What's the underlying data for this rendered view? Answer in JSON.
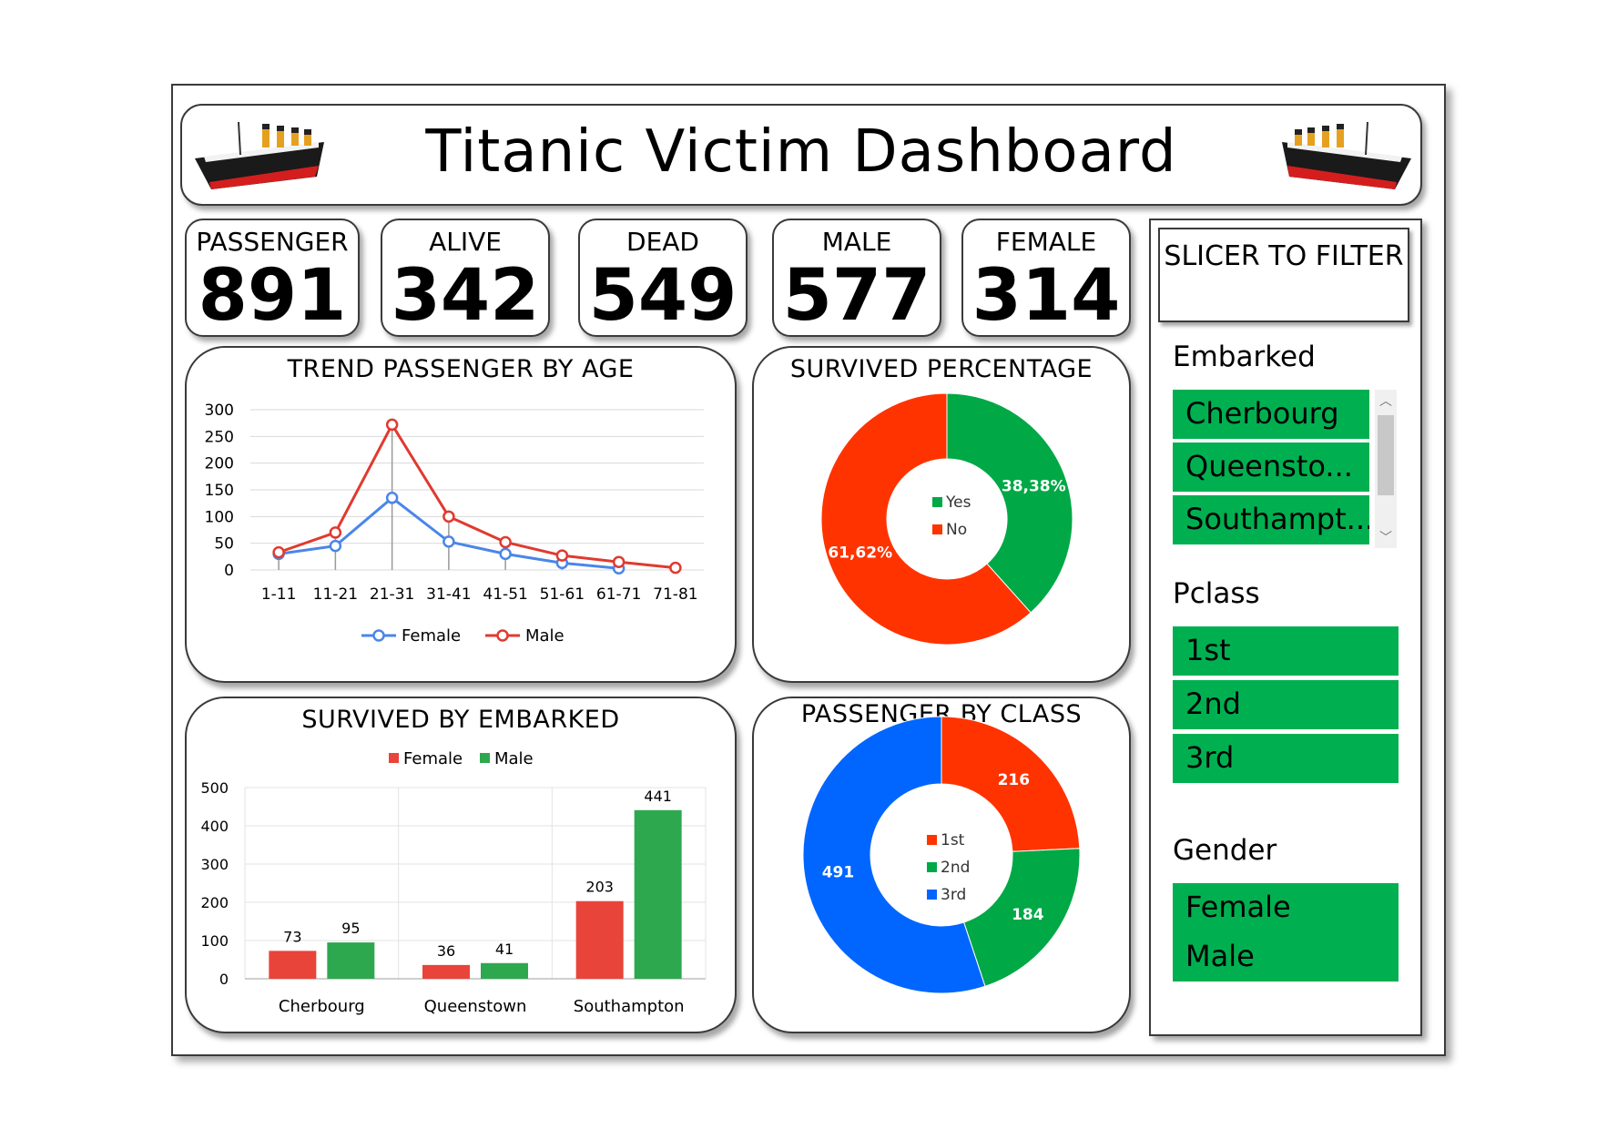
{
  "title": "Titanic Victim Dashboard",
  "kpis": [
    {
      "label": "PASSENGER",
      "value": "891"
    },
    {
      "label": "ALIVE",
      "value": "342"
    },
    {
      "label": "DEAD",
      "value": "549"
    },
    {
      "label": "MALE",
      "value": "577"
    },
    {
      "label": "FEMALE",
      "value": "314"
    }
  ],
  "slicer": {
    "header": "SLICER TO FILTER",
    "groups": [
      {
        "title": "Embarked",
        "items": [
          "Cherbourg",
          "Queensto...",
          "Southampt..."
        ]
      },
      {
        "title": "Pclass",
        "items": [
          "1st",
          "2nd",
          "3rd"
        ]
      },
      {
        "title": "Gender",
        "items": [
          "Female",
          "Male"
        ]
      }
    ],
    "item_color": "#00b050"
  },
  "chart_data": [
    {
      "type": "line",
      "title": "TREND PASSENGER BY AGE",
      "categories": [
        "1-11",
        "11-21",
        "21-31",
        "31-41",
        "41-51",
        "51-61",
        "61-71",
        "71-81"
      ],
      "series": [
        {
          "name": "Female",
          "color": "#4a86e8",
          "values": [
            30,
            45,
            135,
            53,
            30,
            13,
            3,
            null
          ]
        },
        {
          "name": "Male",
          "color": "#e03a2f",
          "values": [
            33,
            70,
            272,
            100,
            52,
            27,
            15,
            4
          ]
        }
      ],
      "ylim": [
        0,
        300
      ],
      "yticks": [
        0,
        50,
        100,
        150,
        200,
        250,
        300
      ],
      "grid": true,
      "legend": "bottom"
    },
    {
      "type": "pie",
      "title": "SURVIVED PERCENTAGE",
      "labels": [
        "Yes",
        "No"
      ],
      "values": [
        38.38,
        61.62
      ],
      "data_labels": [
        "38,38%",
        "61,62%"
      ],
      "colors": [
        "#00a846",
        "#ff3300"
      ],
      "legend": "center"
    },
    {
      "type": "bar",
      "title": "SURVIVED BY EMBARKED",
      "categories": [
        "Cherbourg",
        "Queenstown",
        "Southampton"
      ],
      "series": [
        {
          "name": "Female",
          "color": "#e8443a",
          "values": [
            73,
            36,
            203
          ]
        },
        {
          "name": "Male",
          "color": "#2ea84f",
          "values": [
            95,
            41,
            441
          ]
        }
      ],
      "ylim": [
        0,
        500
      ],
      "yticks": [
        0,
        100,
        200,
        300,
        400,
        500
      ],
      "grid": true,
      "legend": "top"
    },
    {
      "type": "pie",
      "title": "PASSENGER BY CLASS",
      "labels": [
        "1st",
        "2nd",
        "3rd"
      ],
      "values": [
        216,
        184,
        491
      ],
      "colors": [
        "#ff3300",
        "#00a846",
        "#0066ff"
      ],
      "legend": "center"
    }
  ]
}
